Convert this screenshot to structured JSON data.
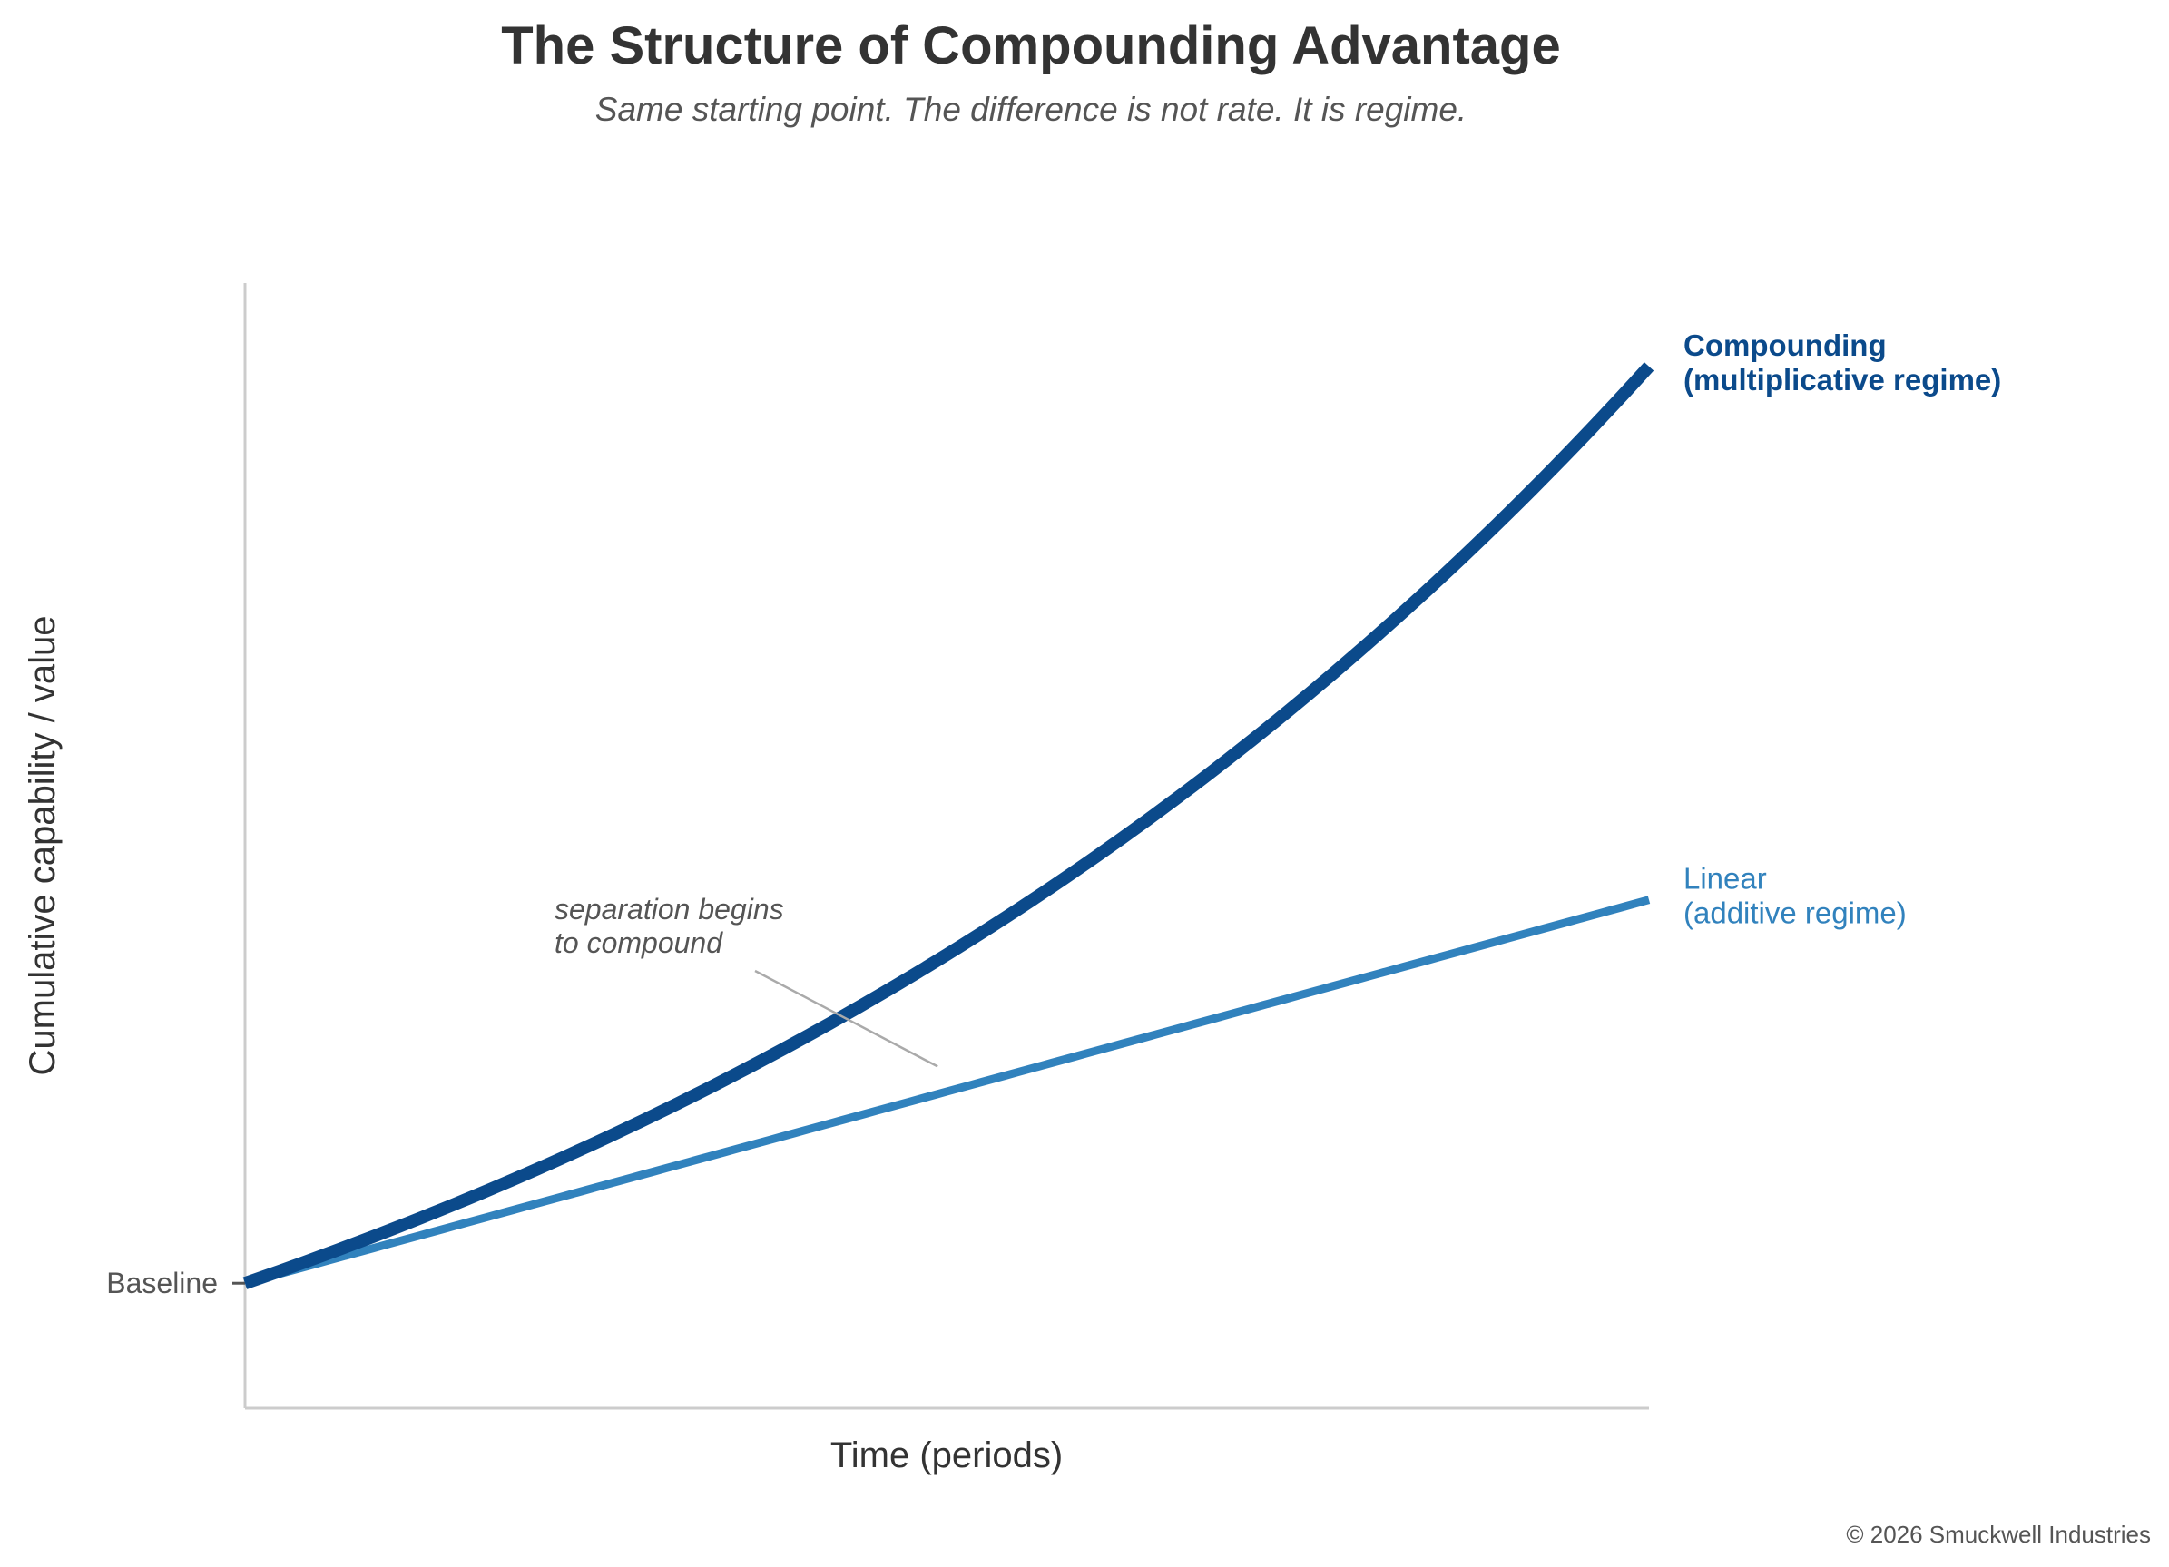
{
  "chart_data": {
    "type": "line",
    "title": "The Structure of Compounding Advantage",
    "subtitle": "Same starting point. The difference is not rate. It is regime.",
    "xlabel": "Time (periods)",
    "ylabel": "Cumulative capability / value",
    "y_ticks": [
      {
        "value": 1.0,
        "label": "Baseline"
      }
    ],
    "xlim": [
      0,
      30
    ],
    "ylim": [
      0.7,
      3.4
    ],
    "grid": false,
    "legend": "direct labels at line ends",
    "series": [
      {
        "name": "Compounding\n(multiplicative regime)",
        "label_lines": [
          "Compounding",
          "(multiplicative regime)"
        ],
        "color": "#0b4a8b",
        "line_width": "thick",
        "model": "exponential",
        "start": 1.0,
        "end": 3.2,
        "x": [
          0,
          3,
          6,
          9,
          12,
          15,
          18,
          21,
          24,
          27,
          30
        ],
        "values": [
          1.0,
          1.12,
          1.26,
          1.42,
          1.59,
          1.79,
          2.01,
          2.25,
          2.53,
          2.85,
          3.2
        ]
      },
      {
        "name": "Linear\n(additive regime)",
        "label_lines": [
          "Linear",
          "(additive regime)"
        ],
        "color": "#3182bd",
        "line_width": "medium",
        "model": "linear",
        "start": 1.0,
        "end": 1.92,
        "x": [
          0,
          3,
          6,
          9,
          12,
          15,
          18,
          21,
          24,
          27,
          30
        ],
        "values": [
          1.0,
          1.092,
          1.184,
          1.276,
          1.368,
          1.46,
          1.552,
          1.644,
          1.736,
          1.828,
          1.92
        ]
      }
    ],
    "annotations": [
      {
        "text_lines": [
          "separation begins",
          "to compound"
        ],
        "target_x": 14.8,
        "target_y": 1.52,
        "color": "#555555",
        "arrow_color": "#aaaaaa"
      }
    ],
    "axis_color": "#cccccc"
  },
  "footer": {
    "copyright": "© 2026 Smuckwell Industries"
  }
}
